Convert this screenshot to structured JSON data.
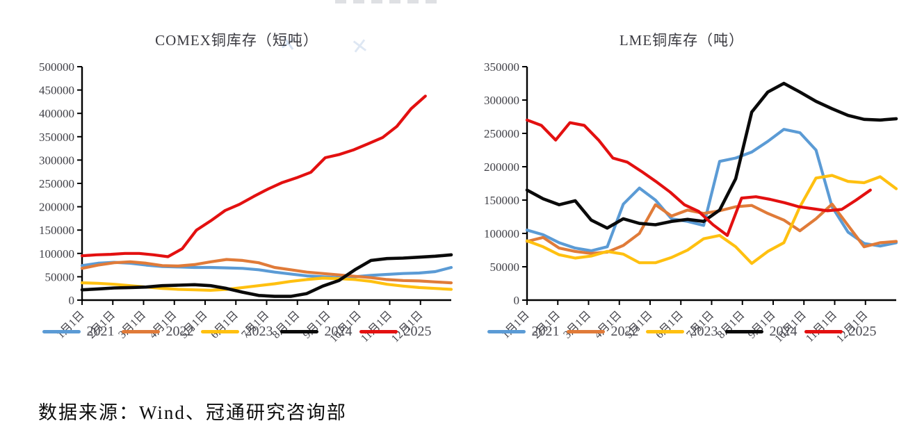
{
  "page": {
    "source_note": "数据来源：Wind、冠通研究咨询部",
    "background": "#ffffff",
    "decor": {
      "watermark_glyph": "✕",
      "clipped_text_artifact": "top-center remnants of cropped heading"
    }
  },
  "legend": {
    "position": "bottom",
    "years": [
      "2021",
      "2022",
      "2023",
      "2024",
      "2025"
    ]
  },
  "colors": {
    "blue_2021": "#5B9BD5",
    "orange_2022": "#E07B39",
    "yellow_2023": "#FFC010",
    "black_2024": "#0a0a0a",
    "red_2025": "#E31010",
    "axis": "#000000",
    "tick_text": "#404047"
  },
  "chart_data": [
    {
      "type": "line",
      "title": "COMEX铜库存（短吨）",
      "ylabel": "",
      "xlabel": "",
      "ylim": [
        0,
        500000
      ],
      "y_ticks": [
        0,
        50000,
        100000,
        150000,
        200000,
        250000,
        300000,
        350000,
        400000,
        450000,
        500000
      ],
      "x_labels": [
        "1月1日",
        "2月1日",
        "3月1日",
        "4月1日",
        "5月1日",
        "6月1日",
        "7月1日",
        "8月1日",
        "9月1日",
        "10月1日",
        "11月1日",
        "12月1日"
      ],
      "grid": false,
      "legend_position": "bottom",
      "series": [
        {
          "name": "2021",
          "color": "#5B9BD5",
          "span": 1,
          "values": [
            74000,
            79000,
            81000,
            79000,
            75000,
            72000,
            71000,
            70000,
            70000,
            69000,
            68000,
            65000,
            60000,
            56000,
            52000,
            50000,
            48000,
            50000,
            53000,
            55000,
            57000,
            58000,
            61000,
            70000
          ]
        },
        {
          "name": "2022",
          "color": "#E07B39",
          "span": 1,
          "values": [
            68000,
            75000,
            80000,
            82000,
            79000,
            74000,
            73000,
            76000,
            82000,
            87000,
            85000,
            80000,
            70000,
            65000,
            60000,
            57000,
            54000,
            51000,
            48000,
            44000,
            42000,
            41000,
            39000,
            37000
          ]
        },
        {
          "name": "2023",
          "color": "#FFC010",
          "span": 1,
          "values": [
            37000,
            36000,
            34000,
            31000,
            28000,
            25000,
            23000,
            22000,
            21000,
            23000,
            27000,
            31000,
            35000,
            40000,
            44000,
            47000,
            46000,
            44000,
            40000,
            34000,
            30000,
            27000,
            25000,
            23000
          ]
        },
        {
          "name": "2024",
          "color": "#0a0a0a",
          "span": 1,
          "values": [
            22000,
            24000,
            26000,
            27000,
            28000,
            31000,
            32000,
            33000,
            31000,
            25000,
            17000,
            10000,
            8000,
            8000,
            14000,
            30000,
            42000,
            65000,
            85000,
            89000,
            90000,
            92000,
            94000,
            97000
          ]
        },
        {
          "name": "2025",
          "color": "#E31010",
          "span": 0.93,
          "values": [
            95000,
            97000,
            98000,
            100000,
            100000,
            97000,
            93000,
            110000,
            150000,
            170000,
            192000,
            205000,
            222000,
            238000,
            252000,
            262000,
            274000,
            305000,
            312000,
            322000,
            335000,
            348000,
            372000,
            410000,
            437000
          ]
        }
      ]
    },
    {
      "type": "line",
      "title": "LME铜库存（吨）",
      "ylabel": "",
      "xlabel": "",
      "ylim": [
        0,
        350000
      ],
      "y_ticks": [
        0,
        50000,
        100000,
        150000,
        200000,
        250000,
        300000,
        350000
      ],
      "x_labels": [
        "1月1日",
        "2月1日",
        "3月1日",
        "4月1日",
        "5月1日",
        "6月1日",
        "7月1日",
        "8月1日",
        "9月1日",
        "10月1日",
        "11月1日",
        "12月1日"
      ],
      "grid": false,
      "legend_position": "bottom",
      "series": [
        {
          "name": "2021",
          "color": "#5B9BD5",
          "span": 1,
          "values": [
            105000,
            98000,
            86000,
            78000,
            74000,
            80000,
            144000,
            168000,
            150000,
            122000,
            118000,
            112000,
            208000,
            213000,
            222000,
            238000,
            256000,
            251000,
            225000,
            140000,
            102000,
            85000,
            81000,
            86000
          ]
        },
        {
          "name": "2022",
          "color": "#E07B39",
          "span": 1,
          "values": [
            88000,
            94000,
            78000,
            73000,
            70000,
            72000,
            82000,
            100000,
            143000,
            126000,
            135000,
            130000,
            134000,
            140000,
            142000,
            130000,
            120000,
            104000,
            122000,
            144000,
            112000,
            80000,
            86000,
            88000
          ]
        },
        {
          "name": "2023",
          "color": "#FFC010",
          "span": 1,
          "values": [
            89000,
            80000,
            68000,
            63000,
            66000,
            73000,
            69000,
            56000,
            56000,
            64000,
            75000,
            92000,
            97000,
            80000,
            55000,
            73000,
            86000,
            140000,
            183000,
            187000,
            178000,
            176000,
            185000,
            167000
          ]
        },
        {
          "name": "2024",
          "color": "#0a0a0a",
          "span": 1,
          "values": [
            165000,
            152000,
            143000,
            149000,
            120000,
            108000,
            122000,
            115000,
            113000,
            118000,
            121000,
            118000,
            135000,
            182000,
            282000,
            312000,
            325000,
            312000,
            298000,
            287000,
            277000,
            271000,
            270000,
            272000
          ]
        },
        {
          "name": "2025",
          "color": "#E31010",
          "span": 0.93,
          "values": [
            270000,
            262000,
            240000,
            266000,
            262000,
            240000,
            213000,
            207000,
            193000,
            178000,
            162000,
            143000,
            133000,
            113000,
            97000,
            153000,
            155000,
            151000,
            146000,
            140000,
            137000,
            134000,
            136000,
            150000,
            165000
          ]
        }
      ]
    }
  ]
}
